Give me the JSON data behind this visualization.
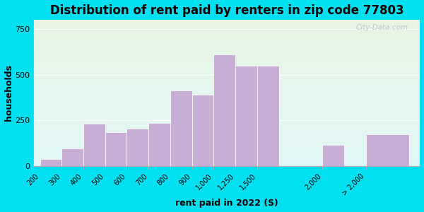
{
  "title": "Distribution of rent paid by renters in zip code 77803",
  "xlabel": "rent paid in 2022 ($)",
  "ylabel": "households",
  "bar_labels": [
    "200",
    "300",
    "400",
    "500",
    "600",
    "700",
    "800",
    "900",
    "1,000",
    "1,250",
    "1,500",
    "2,000",
    "> 2,000"
  ],
  "bar_values": [
    40,
    95,
    230,
    185,
    205,
    235,
    415,
    390,
    610,
    550,
    550,
    115,
    175
  ],
  "bar_color": "#c8aed4",
  "bar_edgecolor": "#ffffff",
  "ylim": [
    0,
    800
  ],
  "yticks": [
    0,
    250,
    500,
    750
  ],
  "background_outer": "#00e0f0",
  "title_fontsize": 12,
  "axis_label_fontsize": 9,
  "watermark_text": "City-Data.com",
  "figsize": [
    6.0,
    3.0
  ],
  "dpi": 100,
  "bg_top_color": "#e8f5e2",
  "bg_bottom_color": "#d4f0f0"
}
